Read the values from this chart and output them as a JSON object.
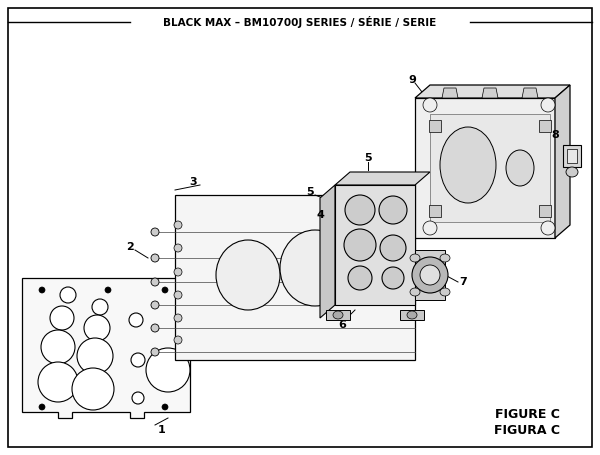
{
  "title": "BLACK MAX – BM10700J SERIES / SÉRIE / SERIE",
  "figure_label_1": "FIGURE C",
  "figure_label_2": "FIGURA C",
  "bg_color": "#ffffff",
  "border_color": "#000000",
  "line_color": "#000000"
}
